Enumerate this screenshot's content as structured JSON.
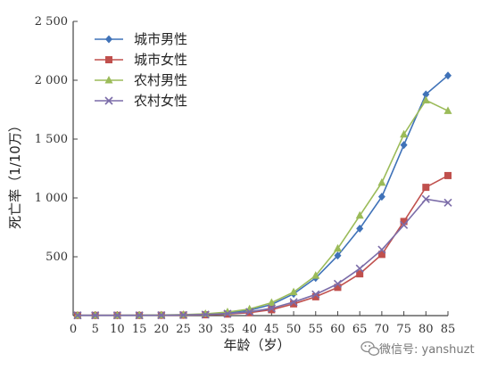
{
  "chart_data": {
    "type": "line",
    "xlabel": "年龄（岁）",
    "ylabel": "死亡率（1/10万）",
    "xlim": [
      0,
      85
    ],
    "ylim": [
      0,
      2500
    ],
    "x_ticks": [
      0,
      5,
      10,
      15,
      20,
      25,
      30,
      35,
      40,
      45,
      50,
      55,
      60,
      65,
      70,
      75,
      80,
      85
    ],
    "y_ticks": [
      {
        "value": 500,
        "label": "500"
      },
      {
        "value": 1000,
        "label": "1 000"
      },
      {
        "value": 1500,
        "label": "1 500"
      },
      {
        "value": 2000,
        "label": "2 000"
      },
      {
        "value": 2500,
        "label": "2 500"
      }
    ],
    "grid": false,
    "legend_position": "top-left",
    "x": [
      1,
      5,
      10,
      15,
      20,
      25,
      30,
      35,
      40,
      45,
      50,
      55,
      60,
      65,
      70,
      75,
      80,
      85
    ],
    "series": [
      {
        "name": "城市男性",
        "color": "#3f72b8",
        "marker": "diamond",
        "values": [
          2,
          2,
          2,
          3,
          4,
          6,
          12,
          25,
          45,
          95,
          185,
          320,
          510,
          740,
          1010,
          1450,
          1880,
          2040
        ]
      },
      {
        "name": "城市女性",
        "color": "#c0504d",
        "marker": "square",
        "values": [
          2,
          2,
          2,
          2,
          3,
          4,
          7,
          13,
          25,
          50,
          100,
          160,
          240,
          355,
          520,
          800,
          1090,
          1190
        ]
      },
      {
        "name": "农村男性",
        "color": "#9bbb59",
        "marker": "triangle",
        "values": [
          2,
          2,
          2,
          3,
          5,
          8,
          15,
          30,
          55,
          110,
          200,
          340,
          570,
          850,
          1130,
          1540,
          1830,
          1740
        ]
      },
      {
        "name": "农村女性",
        "color": "#7b6ca8",
        "marker": "x",
        "values": [
          2,
          2,
          2,
          2,
          3,
          5,
          9,
          17,
          32,
          62,
          115,
          180,
          270,
          400,
          560,
          770,
          990,
          960
        ]
      }
    ]
  },
  "watermark": {
    "icon": "wechat-icon",
    "text": "微信号: yanshuzt"
  }
}
